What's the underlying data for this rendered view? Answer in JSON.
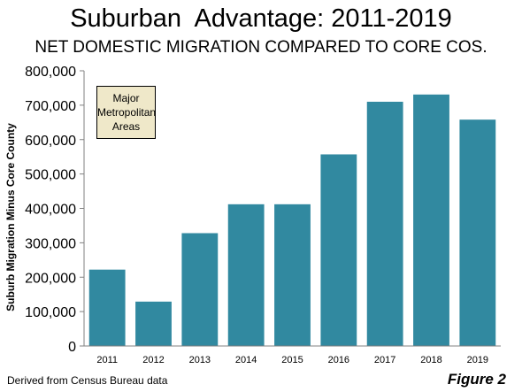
{
  "title": "Suburban  Advantage: 2011-2019",
  "subtitle": "NET DOMESTIC MIGRATION COMPARED TO CORE COS.",
  "legend_note": [
    "Major",
    "Metropolitan",
    "Areas"
  ],
  "source": "Derived from Census Bureau data",
  "figure_label": "Figure 2",
  "colors": {
    "bar": "#3189a0",
    "note_bg": "#efe8c9"
  },
  "chart_data": {
    "type": "bar",
    "categories": [
      "2011",
      "2012",
      "2013",
      "2014",
      "2015",
      "2016",
      "2017",
      "2018",
      "2019"
    ],
    "values": [
      222000,
      129000,
      328000,
      412000,
      412000,
      557000,
      710000,
      731000,
      658000
    ],
    "title": "Suburban  Advantage: 2011-2019",
    "subtitle": "NET DOMESTIC MIGRATION COMPARED TO CORE COS.",
    "xlabel": "",
    "ylabel": "Suburb Migration Minus Core County",
    "ylim": [
      0,
      800000
    ],
    "yticks": [
      0,
      100000,
      200000,
      300000,
      400000,
      500000,
      600000,
      700000,
      800000
    ],
    "ytick_labels": [
      "0",
      "100,000",
      "200,000",
      "300,000",
      "400,000",
      "500,000",
      "600,000",
      "700,000",
      "800,000"
    ],
    "grid": false,
    "legend": false
  }
}
